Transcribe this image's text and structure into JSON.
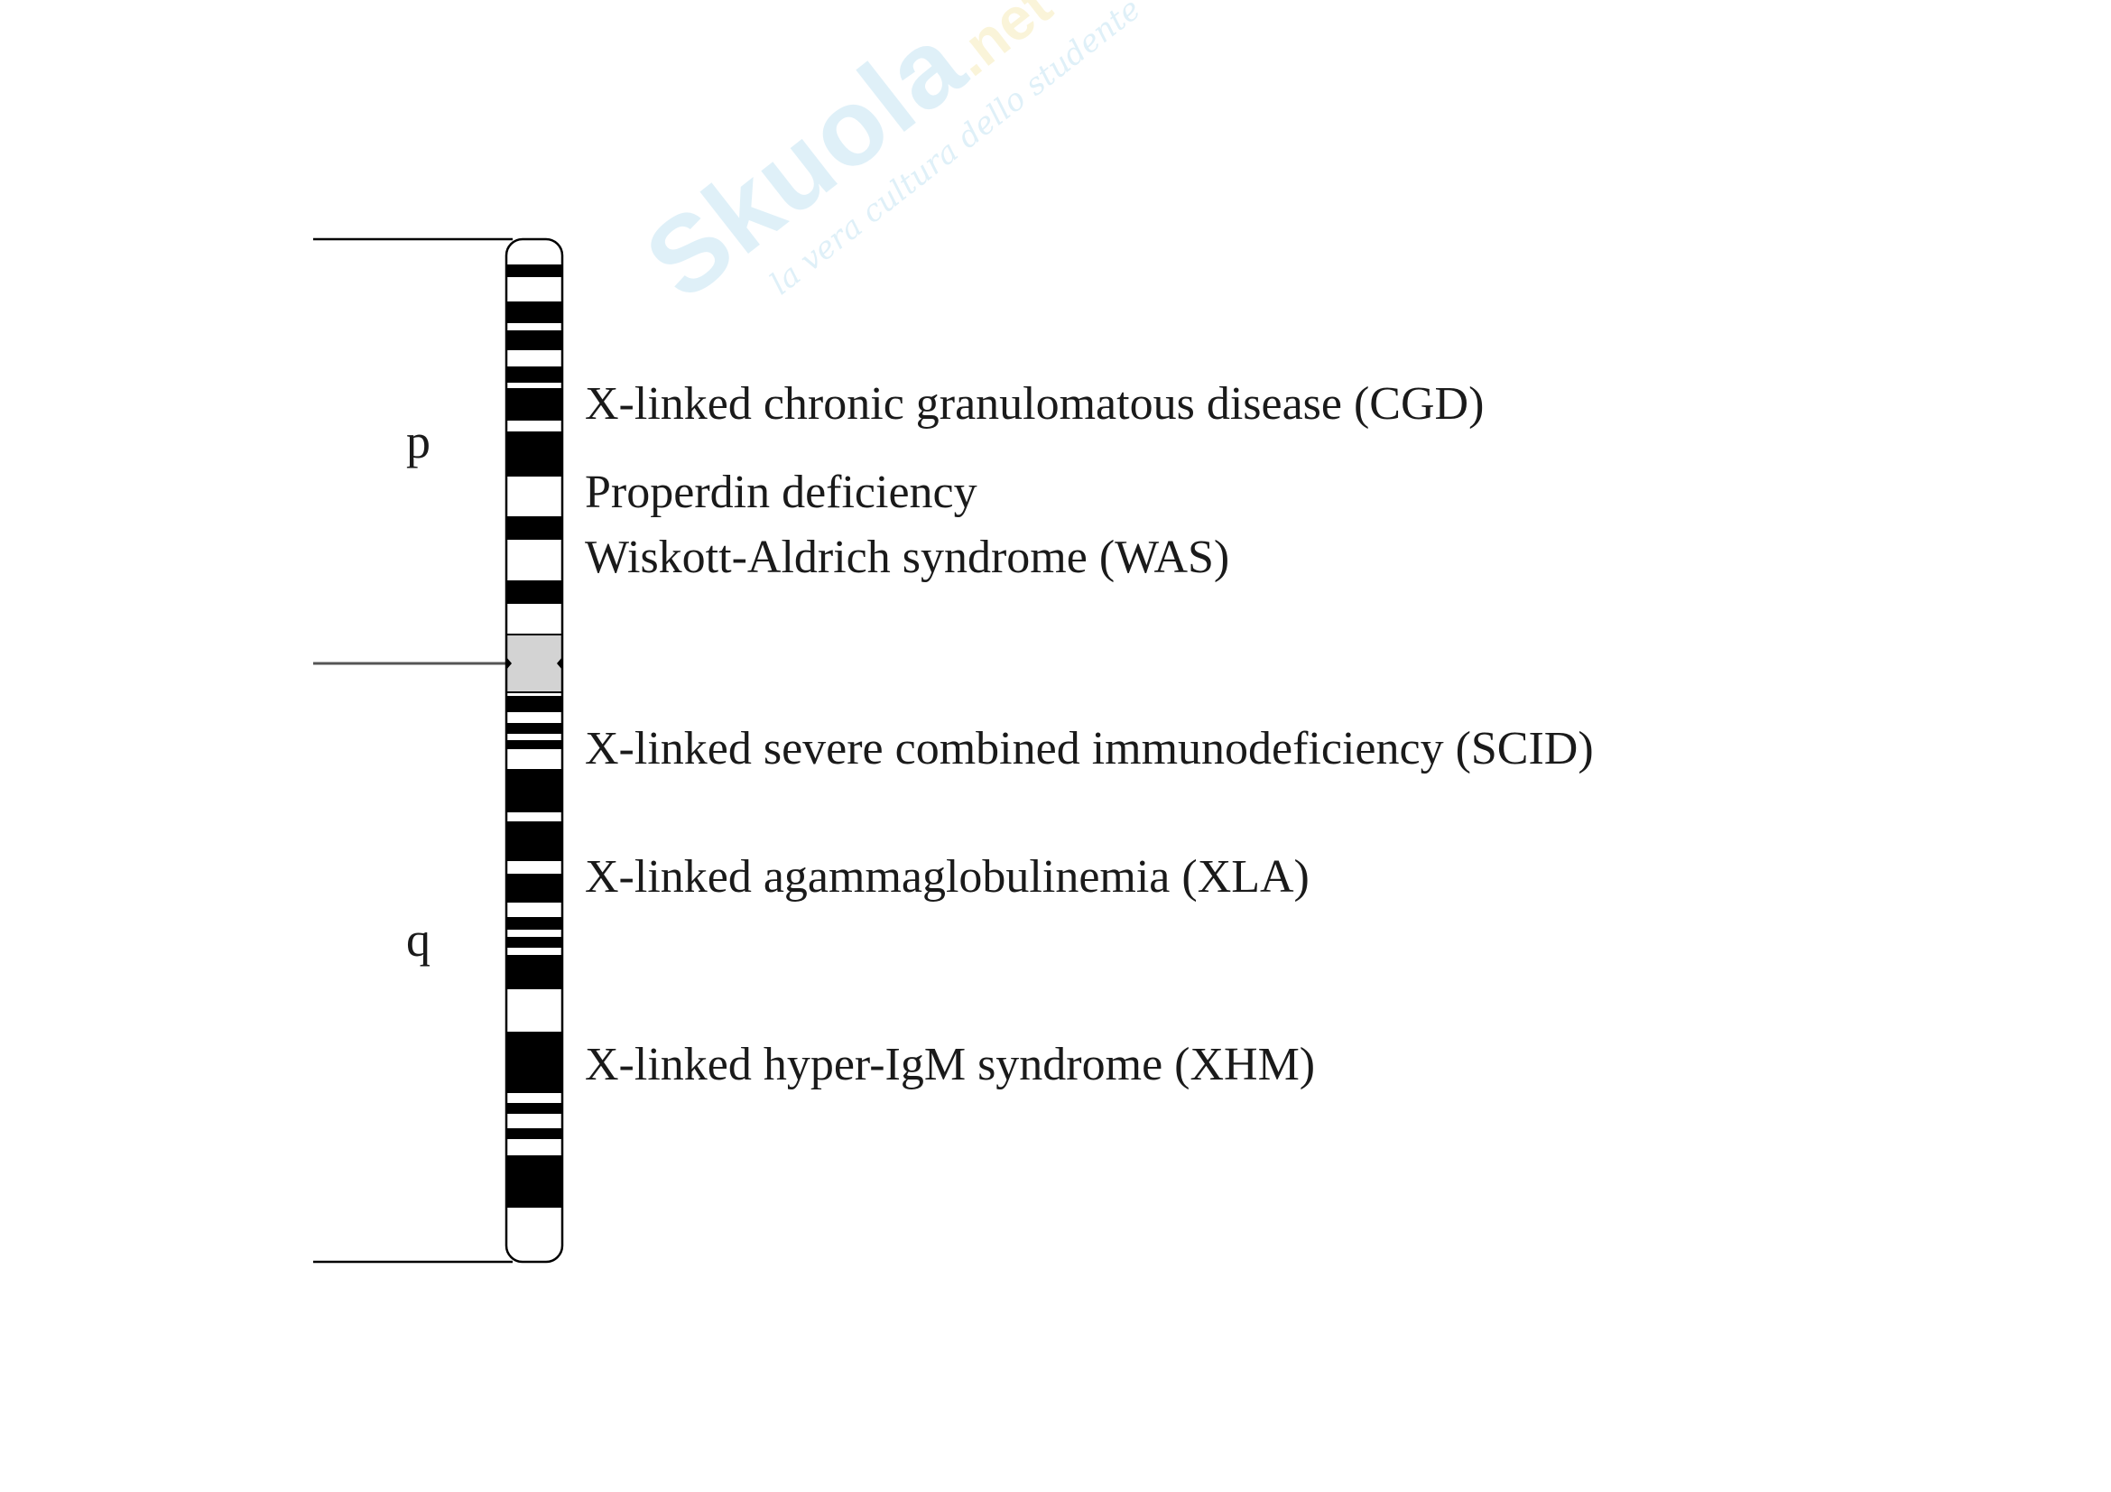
{
  "arms": {
    "p": "p",
    "q": "q"
  },
  "diseases": [
    {
      "label": "X-linked chronic granulomatous disease (CGD)"
    },
    {
      "label": "Properdin deficiency"
    },
    {
      "label": "Wiskott-Aldrich syndrome (WAS)"
    },
    {
      "label": "X-linked severe combined immunodeficiency (SCID)"
    },
    {
      "label": "X-linked agammaglobulinemia (XLA)"
    },
    {
      "label": "X-linked hyper-IgM syndrome (XHM)"
    }
  ],
  "watermark": {
    "brand": "Skuola",
    "domain": ".net",
    "tagline": "la vera cultura dello studente"
  },
  "colors": {
    "band_dark": "#000000",
    "band_light": "#ffffff",
    "centromere": "#d3d3d3",
    "line": "#000000",
    "watermark_blue": "#3fa9d8",
    "watermark_yellow": "#e6c21a"
  }
}
